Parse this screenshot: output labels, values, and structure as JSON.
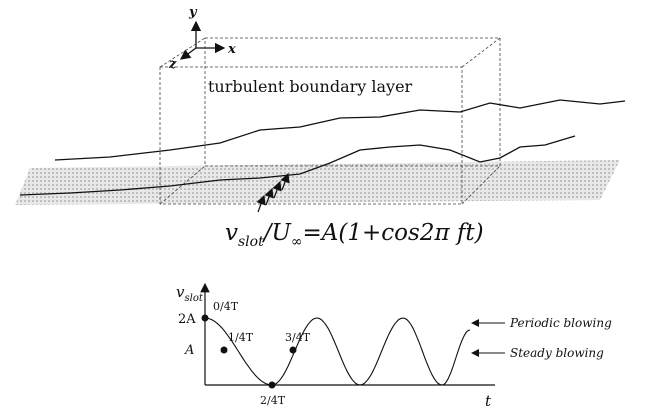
{
  "axes": {
    "y": "y",
    "z": "z",
    "x": "x"
  },
  "box_label": "turbulent boundary layer",
  "equation": {
    "v": "v",
    "v_sub": "slot",
    "u": "/U",
    "u_sub": "∞",
    "rest": "=A(1+cos2π ft)"
  },
  "plot": {
    "y_label": "v",
    "y_label_sub": "slot",
    "x_label": "t",
    "levels": [
      "2A",
      "A"
    ],
    "phases": [
      "0/4T",
      "1/4T",
      "2/4T",
      "3/4T"
    ],
    "legend": [
      "Periodic blowing",
      "Steady blowing"
    ]
  }
}
